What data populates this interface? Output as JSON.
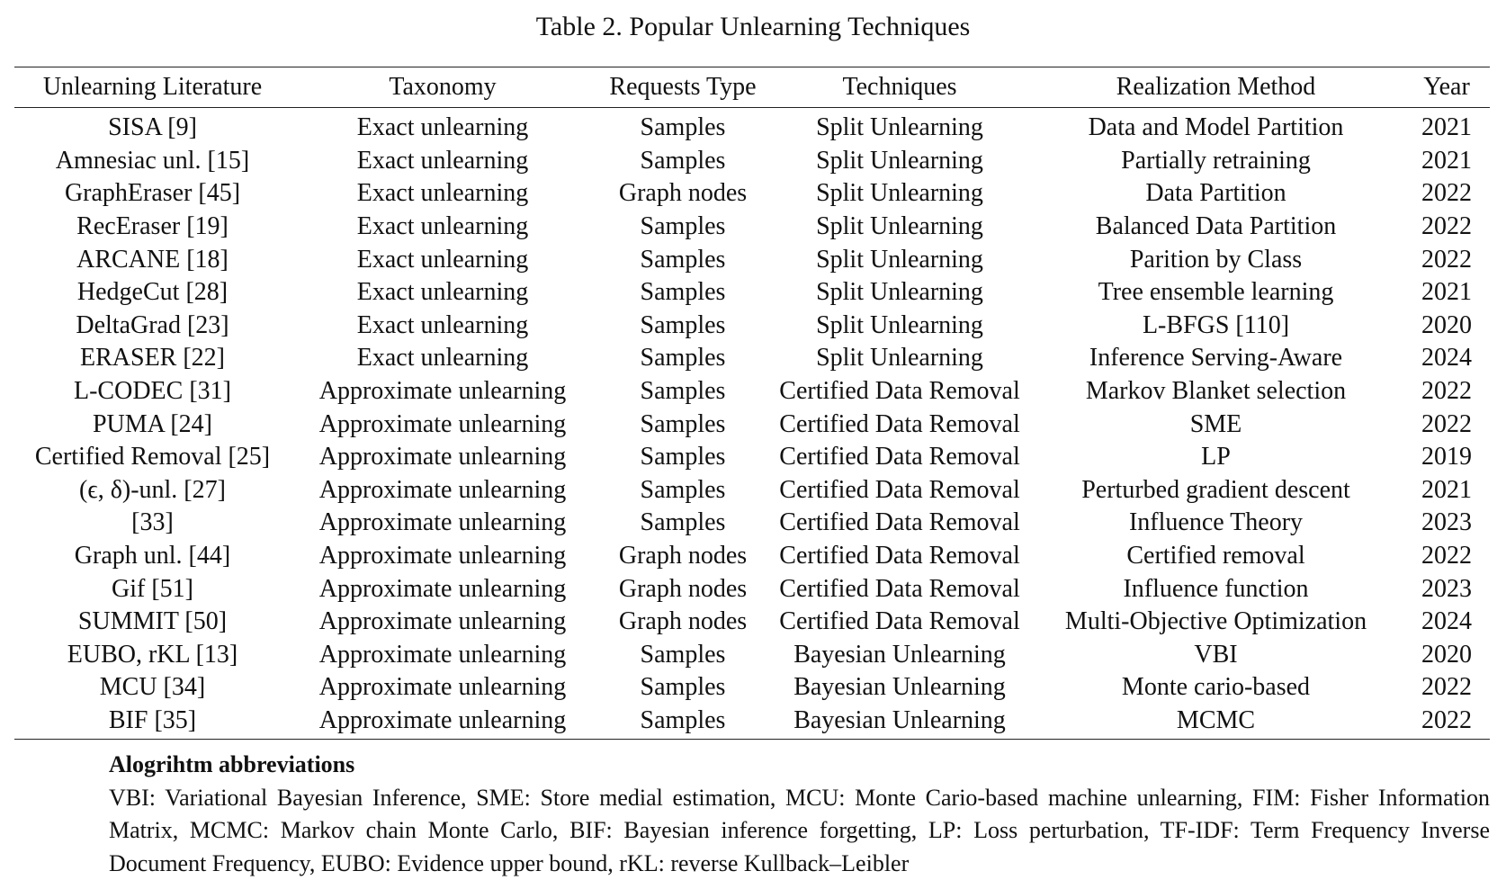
{
  "caption": "Table 2.  Popular Unlearning Techniques",
  "table": {
    "headers": [
      "Unlearning Literature",
      "Taxonomy",
      "Requests Type",
      "Techniques",
      "Realization Method",
      "Year"
    ],
    "rows": [
      [
        "SISA [9]",
        "Exact unlearning",
        "Samples",
        "Split Unlearning",
        "Data and Model Partition",
        "2021"
      ],
      [
        "Amnesiac unl. [15]",
        "Exact unlearning",
        "Samples",
        "Split Unlearning",
        "Partially retraining",
        "2021"
      ],
      [
        "GraphEraser [45]",
        "Exact unlearning",
        "Graph nodes",
        "Split Unlearning",
        "Data Partition",
        "2022"
      ],
      [
        "RecEraser [19]",
        "Exact unlearning",
        "Samples",
        "Split Unlearning",
        "Balanced Data Partition",
        "2022"
      ],
      [
        "ARCANE [18]",
        "Exact unlearning",
        "Samples",
        "Split Unlearning",
        "Parition by Class",
        "2022"
      ],
      [
        "HedgeCut [28]",
        "Exact unlearning",
        "Samples",
        "Split Unlearning",
        "Tree ensemble learning",
        "2021"
      ],
      [
        "DeltaGrad [23]",
        "Exact unlearning",
        "Samples",
        "Split Unlearning",
        "L-BFGS [110]",
        "2020"
      ],
      [
        "ERASER [22]",
        "Exact unlearning",
        "Samples",
        "Split Unlearning",
        "Inference Serving-Aware",
        "2024"
      ],
      [
        "L-CODEC [31]",
        "Approximate unlearning",
        "Samples",
        "Certified Data Removal",
        "Markov Blanket selection",
        "2022"
      ],
      [
        "PUMA [24]",
        "Approximate unlearning",
        "Samples",
        "Certified Data Removal",
        "SME",
        "2022"
      ],
      [
        "Certified Removal [25]",
        "Approximate unlearning",
        "Samples",
        "Certified Data Removal",
        "LP",
        "2019"
      ],
      [
        "(ϵ, δ)-unl. [27]",
        "Approximate unlearning",
        "Samples",
        "Certified Data Removal",
        "Perturbed gradient descent",
        "2021"
      ],
      [
        "[33]",
        "Approximate unlearning",
        "Samples",
        "Certified Data Removal",
        "Influence Theory",
        "2023"
      ],
      [
        "Graph unl. [44]",
        "Approximate unlearning",
        "Graph nodes",
        "Certified Data Removal",
        "Certified removal",
        "2022"
      ],
      [
        "Gif [51]",
        "Approximate unlearning",
        "Graph nodes",
        "Certified Data Removal",
        "Influence function",
        "2023"
      ],
      [
        "SUMMIT [50]",
        "Approximate unlearning",
        "Graph nodes",
        "Certified Data Removal",
        "Multi-Objective Optimization",
        "2024"
      ],
      [
        "EUBO, rKL [13]",
        "Approximate unlearning",
        "Samples",
        "Bayesian Unlearning",
        "VBI",
        "2020"
      ],
      [
        "MCU [34]",
        "Approximate unlearning",
        "Samples",
        "Bayesian Unlearning",
        "Monte cario-based",
        "2022"
      ],
      [
        "BIF [35]",
        "Approximate unlearning",
        "Samples",
        "Bayesian Unlearning",
        "MCMC",
        "2022"
      ]
    ]
  },
  "notes": {
    "title": "Alogrihtm abbreviations",
    "text": "VBI: Variational Bayesian Inference, SME: Store medial estimation, MCU: Monte Cario-based machine unlearning, FIM: Fisher Information Matrix, MCMC: Markov chain Monte Carlo, BIF: Bayesian inference forgetting, LP: Loss perturbation, TF-IDF: Term Frequency Inverse Document Frequency, EUBO: Evidence upper bound, rKL: reverse Kullback–Leibler"
  }
}
